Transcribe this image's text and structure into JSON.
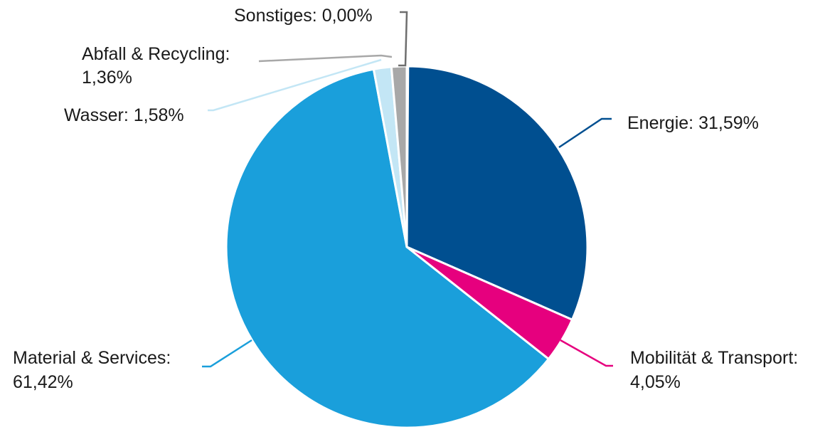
{
  "chart_data": {
    "type": "pie",
    "title": "",
    "slices": [
      {
        "label": "Energie",
        "value": 31.59,
        "display": "31,59%",
        "color": "#004f90"
      },
      {
        "label": "Mobilität & Transport",
        "value": 4.05,
        "display": "4,05%",
        "color": "#e6007e"
      },
      {
        "label": "Material & Services",
        "value": 61.42,
        "display": "61,42%",
        "color": "#1a9fdb"
      },
      {
        "label": "Wasser",
        "value": 1.58,
        "display": "1,58%",
        "color": "#c3e6f5"
      },
      {
        "label": "Abfall & Recycling",
        "value": 1.36,
        "display": "1,36%",
        "color": "#a8a8a8"
      },
      {
        "label": "Sonstiges",
        "value": 0.0,
        "display": "0,00%",
        "color": "#6e6e6e"
      }
    ],
    "start_angle": "12 o'clock",
    "direction": "clockwise"
  }
}
